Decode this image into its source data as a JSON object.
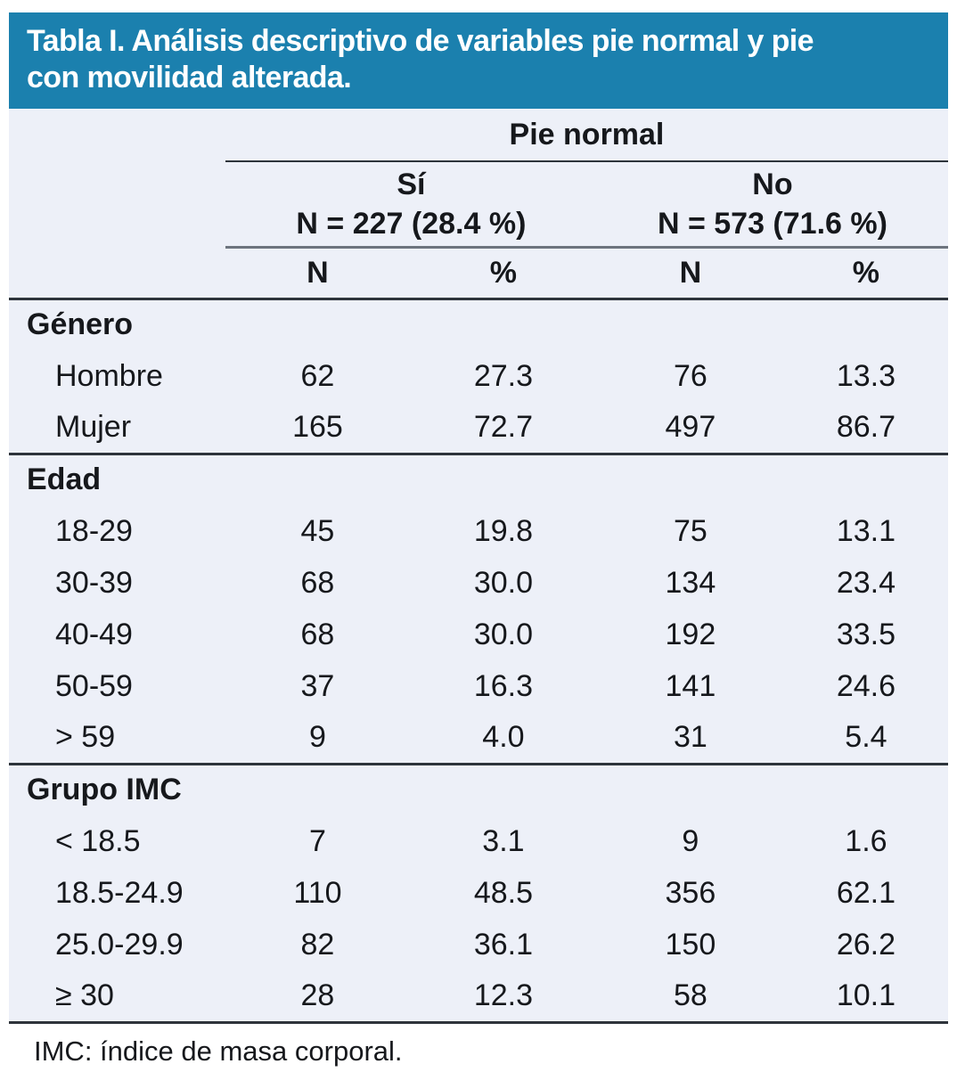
{
  "title": {
    "line1": "Tabla I. Análisis descriptivo de variables pie normal y pie",
    "line2": "con movilidad alterada."
  },
  "colors": {
    "banner_blue": "#1b80ae",
    "table_background": "#edf0f8",
    "rule_dark": "#2e343b",
    "rule_gray": "#6d747e",
    "title_text": "#ffffff",
    "body_text": "#16181c"
  },
  "header": {
    "group_label": "Pie normal",
    "subgroups": [
      {
        "label": "Sí",
        "n_label": "N = 227 (28.4 %)"
      },
      {
        "label": "No",
        "n_label": "N = 573 (71.6 %)"
      }
    ],
    "columns": [
      "N",
      "%",
      "N",
      "%"
    ]
  },
  "sections": [
    {
      "name": "Género",
      "rows": [
        {
          "label": "Hombre",
          "values": [
            "62",
            "27.3",
            "76",
            "13.3"
          ]
        },
        {
          "label": "Mujer",
          "values": [
            "165",
            "72.7",
            "497",
            "86.7"
          ]
        }
      ]
    },
    {
      "name": "Edad",
      "rows": [
        {
          "label": "18-29",
          "values": [
            "45",
            "19.8",
            "75",
            "13.1"
          ]
        },
        {
          "label": "30-39",
          "values": [
            "68",
            "30.0",
            "134",
            "23.4"
          ]
        },
        {
          "label": "40-49",
          "values": [
            "68",
            "30.0",
            "192",
            "33.5"
          ]
        },
        {
          "label": "50-59",
          "values": [
            "37",
            "16.3",
            "141",
            "24.6"
          ]
        },
        {
          "label": "> 59",
          "values": [
            "9",
            "4.0",
            "31",
            "5.4"
          ]
        }
      ]
    },
    {
      "name": "Grupo IMC",
      "rows": [
        {
          "label": "< 18.5",
          "values": [
            "7",
            "3.1",
            "9",
            "1.6"
          ]
        },
        {
          "label": "18.5-24.9",
          "values": [
            "110",
            "48.5",
            "356",
            "62.1"
          ]
        },
        {
          "label": "25.0-29.9",
          "values": [
            "82",
            "36.1",
            "150",
            "26.2"
          ]
        },
        {
          "label": "≥ 30",
          "values": [
            "28",
            "12.3",
            "58",
            "10.1"
          ]
        }
      ]
    }
  ],
  "footnote": "IMC: índice de masa corporal."
}
